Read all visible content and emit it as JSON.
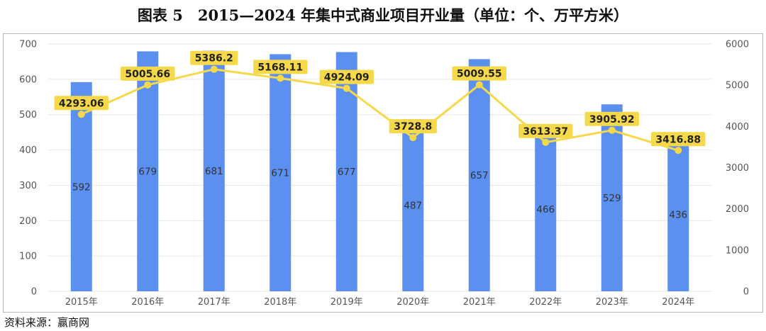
{
  "title": "图表 5　2015—2024 年集中式商业项目开业量（单位：个、万平方米）",
  "source": "资料来源：赢商网",
  "colors": {
    "bar": "#5B8FF0",
    "line": "#F5D94A",
    "label_bg": "#F5D94A",
    "axis_text": "#555555",
    "grid": "#E6E6E6"
  },
  "chart_data": {
    "type": "bar+line",
    "categories": [
      "2015年",
      "2016年",
      "2017年",
      "2018年",
      "2019年",
      "2020年",
      "2021年",
      "2022年",
      "2023年",
      "2024年"
    ],
    "series": [
      {
        "type": "bar",
        "axis": "left",
        "values": [
          592,
          679,
          681,
          671,
          677,
          487,
          657,
          466,
          529,
          436
        ],
        "labels": [
          "592",
          "679",
          "681",
          "671",
          "677",
          "487",
          "657",
          "466",
          "529",
          "436"
        ]
      },
      {
        "type": "line",
        "axis": "right",
        "values": [
          4293.06,
          5005.66,
          5386.2,
          5168.11,
          4924.09,
          3728.8,
          5009.55,
          3613.37,
          3905.92,
          3416.88
        ],
        "labels": [
          "4293.06",
          "5005.66",
          "5386.2",
          "5168.11",
          "4924.09",
          "3728.8",
          "5009.55",
          "3613.37",
          "3905.92",
          "3416.88"
        ]
      }
    ],
    "y_left": {
      "min": 0,
      "max": 700,
      "ticks": [
        "0",
        "100",
        "200",
        "300",
        "400",
        "500",
        "600",
        "700"
      ]
    },
    "y_right": {
      "min": 0,
      "max": 6000,
      "ticks": [
        "0",
        "1000",
        "2000",
        "3000",
        "4000",
        "5000",
        "6000"
      ]
    },
    "grid": true
  }
}
